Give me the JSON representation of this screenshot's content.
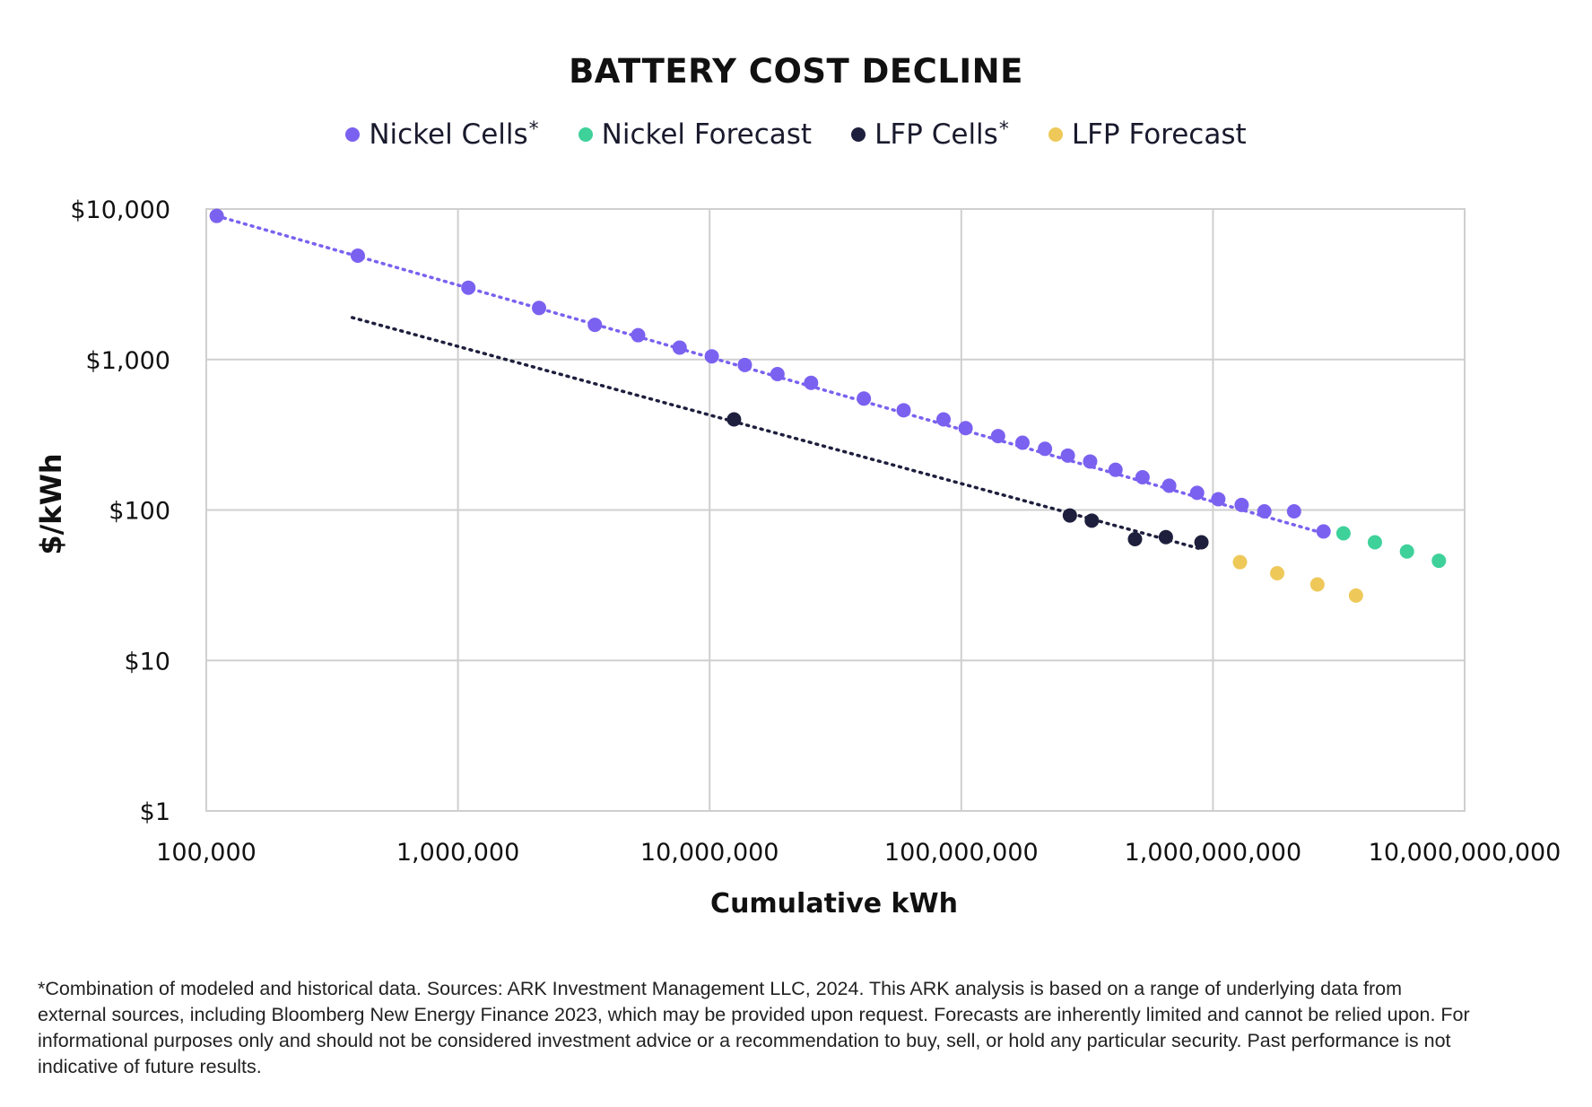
{
  "chart_data": {
    "type": "scatter",
    "title": "BATTERY COST DECLINE",
    "xlabel": "Cumulative kWh",
    "ylabel": "$/kWh",
    "xscale": "log",
    "yscale": "log",
    "xlim": [
      100000,
      10000000000
    ],
    "ylim": [
      1,
      10000
    ],
    "grid": true,
    "legend_position": "top",
    "x_ticks": [
      {
        "value": 100000,
        "label": "100,000"
      },
      {
        "value": 1000000,
        "label": "1,000,000"
      },
      {
        "value": 10000000,
        "label": "10,000,000"
      },
      {
        "value": 100000000,
        "label": "100,000,000"
      },
      {
        "value": 1000000000,
        "label": "1,000,000,000"
      },
      {
        "value": 10000000000,
        "label": "10,000,000,000"
      }
    ],
    "y_ticks": [
      {
        "value": 10000,
        "label": "$10,000"
      },
      {
        "value": 1000,
        "label": "$1,000"
      },
      {
        "value": 100,
        "label": "$100"
      },
      {
        "value": 10,
        "label": "$10"
      },
      {
        "value": 1,
        "label": "$1"
      }
    ],
    "series": [
      {
        "name": "Nickel Cells",
        "color": "#7B61F0",
        "legend_star": "*",
        "points": [
          [
            110000,
            9000
          ],
          [
            400000,
            4900
          ],
          [
            1100000,
            3000
          ],
          [
            2100000,
            2200
          ],
          [
            3500000,
            1700
          ],
          [
            5200000,
            1450
          ],
          [
            7600000,
            1200
          ],
          [
            10200000,
            1050
          ],
          [
            13800000,
            920
          ],
          [
            18600000,
            800
          ],
          [
            25300000,
            700
          ],
          [
            41000000,
            550
          ],
          [
            59000000,
            460
          ],
          [
            85000000,
            400
          ],
          [
            104000000,
            350
          ],
          [
            140000000,
            310
          ],
          [
            175000000,
            280
          ],
          [
            215000000,
            255
          ],
          [
            265000000,
            230
          ],
          [
            325000000,
            210
          ],
          [
            410000000,
            185
          ],
          [
            525000000,
            165
          ],
          [
            670000000,
            145
          ],
          [
            865000000,
            130
          ],
          [
            1050000000,
            118
          ],
          [
            1300000000,
            108
          ],
          [
            1600000000,
            98
          ],
          [
            2100000000,
            98
          ],
          [
            2750000000,
            72
          ]
        ]
      },
      {
        "name": "Nickel Forecast",
        "color": "#3FD19A",
        "points": [
          [
            3300000000,
            70
          ],
          [
            4400000000,
            61
          ],
          [
            5900000000,
            53
          ],
          [
            7900000000,
            46
          ]
        ]
      },
      {
        "name": "LFP Cells",
        "color": "#1E1F3D",
        "legend_star": "*",
        "points": [
          [
            12500000,
            400
          ],
          [
            270000000,
            92
          ],
          [
            330000000,
            85
          ],
          [
            490000000,
            64
          ],
          [
            650000000,
            66
          ],
          [
            900000000,
            61
          ]
        ]
      },
      {
        "name": "LFP Forecast",
        "color": "#EEC95A",
        "points": [
          [
            1280000000,
            45
          ],
          [
            1800000000,
            38
          ],
          [
            2600000000,
            32
          ],
          [
            3700000000,
            27
          ]
        ]
      }
    ],
    "trendlines": [
      {
        "series": "Nickel Cells",
        "color": "#7B61F0",
        "from": [
          110000,
          9000
        ],
        "to": [
          2750000000,
          70
        ]
      },
      {
        "series": "LFP Cells",
        "color": "#1E1F3D",
        "from": [
          380000,
          1900
        ],
        "to": [
          900000000,
          55
        ]
      }
    ]
  },
  "footnote": "*Combination of modeled and historical data. Sources: ARK Investment Management LLC, 2024. This ARK analysis is based on a range of underlying data from external sources, including Bloomberg New Energy Finance 2023, which may be provided upon request. Forecasts are inherently limited and cannot be relied upon. For informational purposes only and should not be considered investment advice or a recommendation to buy, sell, or hold any particular security. Past performance is not indicative of future results."
}
